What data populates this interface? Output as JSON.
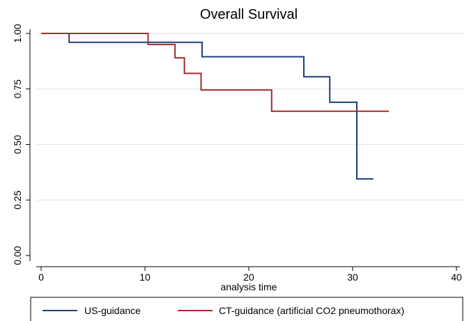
{
  "chart_data": {
    "type": "line",
    "step": true,
    "title": "Overall Survival",
    "xlabel": "analysis time",
    "ylabel": "",
    "xlim": [
      0,
      40
    ],
    "ylim": [
      0,
      1
    ],
    "x_ticks": [
      0,
      10,
      20,
      30,
      40
    ],
    "x_tick_labels": [
      "0",
      "10",
      "20",
      "30",
      "40"
    ],
    "y_ticks": [
      0,
      0.25,
      0.5,
      0.75,
      1.0
    ],
    "y_tick_labels": [
      "0.00",
      "0.25",
      "0.50",
      "0.75",
      "1.00"
    ],
    "grid": "horizontal",
    "legend_position": "bottom",
    "series": [
      {
        "name": "US-guidance",
        "color": "#1f3f7a",
        "x": [
          0,
          2.7,
          2.7,
          15.5,
          15.5,
          25.3,
          25.3,
          27.8,
          27.8,
          30.4,
          30.4,
          32.0
        ],
        "y": [
          1.0,
          1.0,
          0.96,
          0.96,
          0.895,
          0.895,
          0.805,
          0.805,
          0.69,
          0.69,
          0.345,
          0.345
        ]
      },
      {
        "name": "CT-guidance (artificial CO2 pneumothorax)",
        "color": "#a12a2e",
        "x": [
          0,
          10.3,
          10.3,
          12.9,
          12.9,
          13.8,
          13.8,
          15.4,
          15.4,
          22.2,
          22.2,
          33.5
        ],
        "y": [
          1.0,
          1.0,
          0.95,
          0.95,
          0.89,
          0.89,
          0.82,
          0.82,
          0.745,
          0.745,
          0.65,
          0.65
        ]
      }
    ]
  }
}
